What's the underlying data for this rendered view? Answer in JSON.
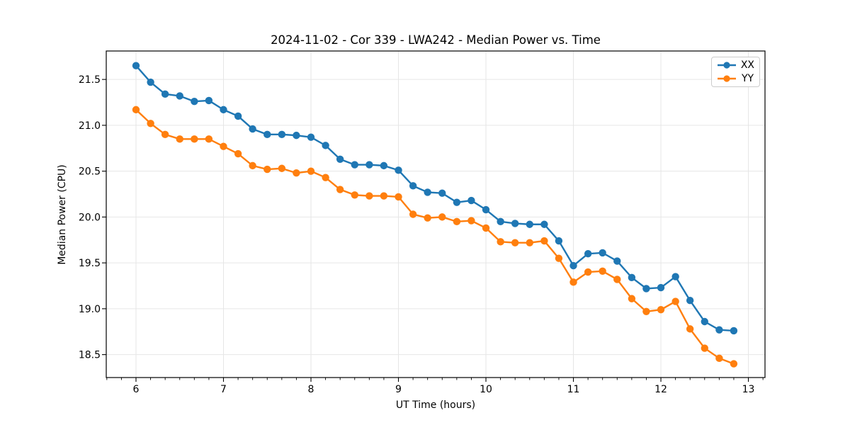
{
  "window": {
    "background": "#ffffff"
  },
  "chart_data": {
    "type": "line",
    "title": "2024-11-02 - Cor 339 - LWA242 - Median Power vs. Time",
    "xlabel": "UT Time (hours)",
    "ylabel": "Median Power (CPU)",
    "grid": true,
    "grid_color": "#e6e6e6",
    "axis_color": "#000000",
    "legend_position": "upper right",
    "marker": "circle",
    "xlim": [
      5.66,
      13.19
    ],
    "ylim": [
      18.25,
      21.81
    ],
    "xticks": [
      6,
      7,
      8,
      9,
      10,
      11,
      12,
      13
    ],
    "xtick_labels": [
      "6",
      "7",
      "8",
      "9",
      "10",
      "11",
      "12",
      "13"
    ],
    "yticks": [
      18.5,
      19.0,
      19.5,
      20.0,
      20.5,
      21.0,
      21.5
    ],
    "ytick_labels": [
      "18.5",
      "19.0",
      "19.5",
      "20.0",
      "20.5",
      "21.0",
      "21.5"
    ],
    "x_minor_ticks_per_major": 6,
    "x": [
      6.0,
      6.167,
      6.333,
      6.5,
      6.667,
      6.833,
      7.0,
      7.167,
      7.333,
      7.5,
      7.667,
      7.833,
      8.0,
      8.167,
      8.333,
      8.5,
      8.667,
      8.833,
      9.0,
      9.167,
      9.333,
      9.5,
      9.667,
      9.833,
      10.0,
      10.167,
      10.333,
      10.5,
      10.667,
      10.833,
      11.0,
      11.167,
      11.333,
      11.5,
      11.667,
      11.833,
      12.0,
      12.167,
      12.333,
      12.5,
      12.667,
      12.833
    ],
    "series": [
      {
        "name": "XX",
        "color": "#1f77b4",
        "values": [
          21.65,
          21.47,
          21.34,
          21.32,
          21.26,
          21.27,
          21.17,
          21.1,
          20.96,
          20.9,
          20.9,
          20.89,
          20.87,
          20.78,
          20.63,
          20.57,
          20.57,
          20.56,
          20.51,
          20.34,
          20.27,
          20.26,
          20.16,
          20.18,
          20.08,
          19.95,
          19.93,
          19.92,
          19.92,
          19.74,
          19.47,
          19.6,
          19.61,
          19.52,
          19.34,
          19.22,
          19.23,
          19.35,
          19.09,
          18.86,
          18.77,
          18.76
        ]
      },
      {
        "name": "YY",
        "color": "#ff7f0e",
        "values": [
          21.17,
          21.02,
          20.9,
          20.85,
          20.85,
          20.85,
          20.77,
          20.69,
          20.56,
          20.52,
          20.53,
          20.48,
          20.5,
          20.43,
          20.3,
          20.24,
          20.23,
          20.23,
          20.22,
          20.03,
          19.99,
          20.0,
          19.95,
          19.96,
          19.88,
          19.73,
          19.72,
          19.72,
          19.74,
          19.55,
          19.29,
          19.4,
          19.41,
          19.32,
          19.11,
          18.97,
          18.99,
          19.08,
          18.78,
          18.57,
          18.46,
          18.4
        ]
      }
    ]
  }
}
